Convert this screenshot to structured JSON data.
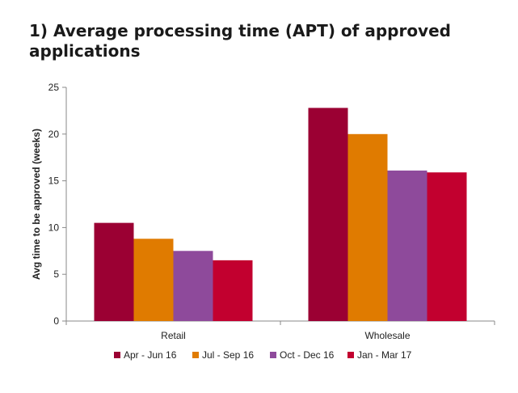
{
  "chart_data": {
    "type": "bar",
    "title": "1) Average processing time (APT) of approved applications",
    "xlabel": "",
    "ylabel": "Avg time to be approved (weeks)",
    "ylim": [
      0,
      25
    ],
    "yticks": [
      0,
      5,
      10,
      15,
      20,
      25
    ],
    "categories": [
      "Retail",
      "Wholesale"
    ],
    "series": [
      {
        "name": "Apr - Jun 16",
        "color": "#9B0033",
        "values": [
          10.5,
          22.8
        ]
      },
      {
        "name": "Jul - Sep 16",
        "color": "#E07B00",
        "values": [
          8.8,
          20.0
        ]
      },
      {
        "name": "Oct - Dec 16",
        "color": "#8E4A9B",
        "values": [
          7.5,
          16.1
        ]
      },
      {
        "name": "Jan - Mar 17",
        "color": "#C2002F",
        "values": [
          6.5,
          15.9
        ]
      }
    ],
    "grid": false,
    "legend": "bottom"
  }
}
